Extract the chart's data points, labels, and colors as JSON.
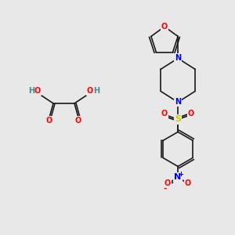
{
  "bg_color": "#e8e8e8",
  "bond_color": "#1a1a1a",
  "atom_colors": {
    "O": "#ff0000",
    "N": "#0000ff",
    "S": "#cccc00",
    "C": "#1a1a1a",
    "H": "#4a8a8a"
  },
  "font_size": 7,
  "bond_width": 1.2
}
